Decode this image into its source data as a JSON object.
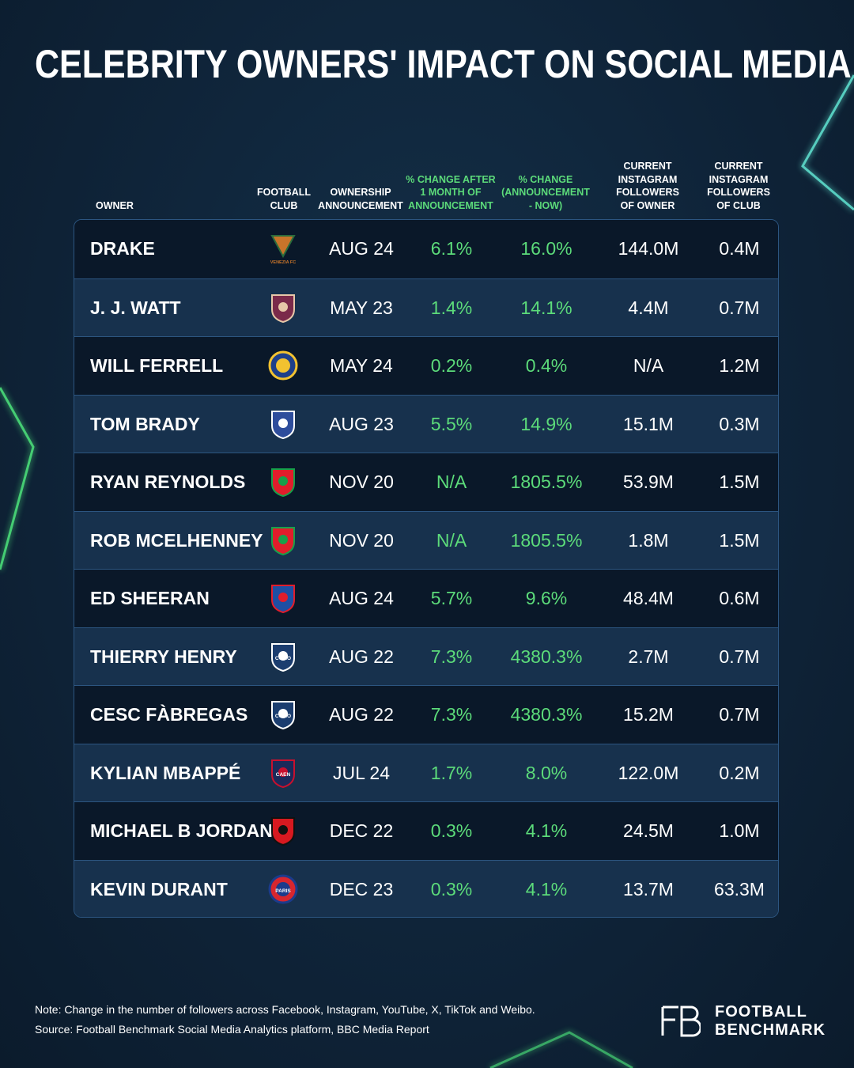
{
  "title": "CELEBRITY OWNERS' IMPACT ON SOCIAL MEDIA",
  "colors": {
    "accent_green": "#5cdb7a",
    "background": "#0f2439",
    "row_dark": "#0a1829",
    "row_light": "#17314d",
    "border": "#2c5580"
  },
  "chart_data": {
    "type": "table",
    "columns": [
      "OWNER",
      "FOOTBALL\nCLUB",
      "OWNERSHIP\nANNOUNCEMENT",
      "% CHANGE AFTER\n1 MONTH OF\nANNOUNCEMENT",
      "% CHANGE\n(ANNOUNCEMENT\n- NOW)",
      "CURRENT\nINSTAGRAM\nFOLLOWERS\nOF OWNER",
      "CURRENT\nINSTAGRAM\nFOLLOWERS\nOF CLUB"
    ],
    "rows": [
      {
        "owner": "DRAKE",
        "club_crest": "venezia-fc-crest",
        "club_crest_text": "VENEZIA FC",
        "announcement": "AUG 24",
        "change_1m": "6.1%",
        "change_now": "16.0%",
        "owner_followers": "144.0M",
        "club_followers": "0.4M"
      },
      {
        "owner": "J. J. WATT",
        "club_crest": "burnley-crest",
        "announcement": "MAY 23",
        "change_1m": "1.4%",
        "change_now": "14.1%",
        "owner_followers": "4.4M",
        "club_followers": "0.7M"
      },
      {
        "owner": "WILL FERRELL",
        "club_crest": "leeds-united-crest",
        "announcement": "MAY 24",
        "change_1m": "0.2%",
        "change_now": "0.4%",
        "owner_followers": "N/A",
        "club_followers": "1.2M"
      },
      {
        "owner": "TOM BRADY",
        "club_crest": "birmingham-city-crest",
        "announcement": "AUG 23",
        "change_1m": "5.5%",
        "change_now": "14.9%",
        "owner_followers": "15.1M",
        "club_followers": "0.3M"
      },
      {
        "owner": "RYAN REYNOLDS",
        "club_crest": "wrexham-crest",
        "announcement": "NOV 20",
        "change_1m": "N/A",
        "change_now": "1805.5%",
        "owner_followers": "53.9M",
        "club_followers": "1.5M"
      },
      {
        "owner": "ROB MCELHENNEY",
        "club_crest": "wrexham-crest",
        "announcement": "NOV 20",
        "change_1m": "N/A",
        "change_now": "1805.5%",
        "owner_followers": "1.8M",
        "club_followers": "1.5M"
      },
      {
        "owner": "ED SHEERAN",
        "club_crest": "ipswich-town-crest",
        "announcement": "AUG 24",
        "change_1m": "5.7%",
        "change_now": "9.6%",
        "owner_followers": "48.4M",
        "club_followers": "0.6M"
      },
      {
        "owner": "THIERRY HENRY",
        "club_crest": "como-crest",
        "club_crest_text": "COMO",
        "announcement": "AUG 22",
        "change_1m": "7.3%",
        "change_now": "4380.3%",
        "owner_followers": "2.7M",
        "club_followers": "0.7M"
      },
      {
        "owner": "CESC FÀBREGAS",
        "club_crest": "como-crest",
        "club_crest_text": "COMO",
        "announcement": "AUG 22",
        "change_1m": "7.3%",
        "change_now": "4380.3%",
        "owner_followers": "15.2M",
        "club_followers": "0.7M"
      },
      {
        "owner": "KYLIAN MBAPPÉ",
        "club_crest": "sm-caen-crest",
        "club_crest_text": "CAEN",
        "announcement": "JUL 24",
        "change_1m": "1.7%",
        "change_now": "8.0%",
        "owner_followers": "122.0M",
        "club_followers": "0.2M"
      },
      {
        "owner": "MICHAEL B JORDAN",
        "club_crest": "bournemouth-crest",
        "announcement": "DEC 22",
        "change_1m": "0.3%",
        "change_now": "4.1%",
        "owner_followers": "24.5M",
        "club_followers": "1.0M"
      },
      {
        "owner": "KEVIN DURANT",
        "club_crest": "psg-crest",
        "club_crest_text": "PARIS",
        "announcement": "DEC 23",
        "change_1m": "0.3%",
        "change_now": "4.1%",
        "owner_followers": "13.7M",
        "club_followers": "63.3M"
      }
    ]
  },
  "footer": {
    "note": "Note: Change in the number of followers across Facebook, Instagram, YouTube, X, TikTok and Weibo.",
    "source": "Source: Football Benchmark Social Media Analytics platform, BBC Media Report"
  },
  "brand": {
    "line1": "FOOTBALL",
    "line2": "BENCHMARK",
    "logo_text": "FB"
  }
}
